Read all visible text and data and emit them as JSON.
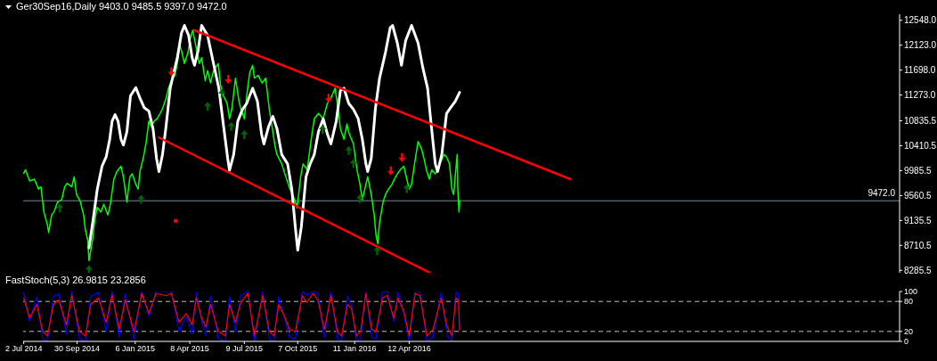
{
  "chart_data": [
    {
      "type": "line",
      "title": "Ger30Sep16,Daily 9403.0 9485.5 9397.0 9472.0",
      "xlim": [
        "2014-07-01",
        "2018-07-18"
      ],
      "ylim": [
        8245,
        12650
      ],
      "yticks": [
        {
          "value": 12548,
          "label": "12548.0"
        },
        {
          "value": 12123,
          "label": "12123.0"
        },
        {
          "value": 11698,
          "label": "11698.0"
        },
        {
          "value": 11273,
          "label": "11273.0"
        },
        {
          "value": 10835.5,
          "label": "10835.5"
        },
        {
          "value": 10410.5,
          "label": "10410.5"
        },
        {
          "value": 9985.5,
          "label": "9985.5"
        },
        {
          "value": 9560.5,
          "label": "9560.5"
        },
        {
          "value": 9135.5,
          "label": "9135.5"
        },
        {
          "value": 8710.5,
          "label": "8710.5"
        },
        {
          "value": 8285.5,
          "label": "8285.5"
        }
      ],
      "tick_labels": "y",
      "ref_lines": [
        {
          "axis": "y",
          "value": 9472,
          "label": "9472.0",
          "color": "#778899"
        }
      ],
      "series": [
        {
          "color": "#00ff00",
          "x": [
            "2014-07-02",
            "2014-07-05",
            "2014-07-12",
            "2014-07-20",
            "2014-07-27",
            "2014-07-31",
            "2014-08-05",
            "2014-08-11",
            "2014-08-13",
            "2014-08-18",
            "2014-08-22",
            "2014-08-28",
            "2014-09-04",
            "2014-09-09",
            "2014-09-13",
            "2014-09-21",
            "2014-09-25",
            "2014-09-29",
            "2014-10-05",
            "2014-10-11",
            "2014-10-14",
            "2014-10-18",
            "2014-10-20",
            "2014-10-26",
            "2014-10-30",
            "2014-11-03",
            "2014-11-09",
            "2014-11-14",
            "2014-11-21",
            "2014-11-25",
            "2014-12-01",
            "2014-12-06",
            "2014-12-13",
            "2014-12-17",
            "2014-12-23",
            "2014-12-28",
            "2015-01-01",
            "2015-01-07",
            "2015-01-11",
            "2015-01-14",
            "2015-01-20",
            "2015-01-24",
            "2015-01-29",
            "2015-02-02",
            "2015-02-07",
            "2015-02-12",
            "2015-02-17",
            "2015-02-21",
            "2015-02-27",
            "2015-03-03",
            "2015-03-08",
            "2015-03-14",
            "2015-03-18",
            "2015-03-22",
            "2015-03-25",
            "2015-03-30",
            "2015-04-05",
            "2015-04-09",
            "2015-04-13",
            "2015-04-19",
            "2015-04-24",
            "2015-04-28",
            "2015-05-04",
            "2015-05-08",
            "2015-05-13",
            "2015-05-18",
            "2015-05-26",
            "2015-05-30",
            "2015-06-04",
            "2015-06-10",
            "2015-06-14",
            "2015-06-18",
            "2015-06-24",
            "2015-06-30",
            "2015-07-03",
            "2015-07-09",
            "2015-07-13",
            "2015-07-18",
            "2015-07-23",
            "2015-07-26",
            "2015-08-01",
            "2015-08-08",
            "2015-08-14",
            "2015-08-20",
            "2015-08-24",
            "2015-08-30",
            "2015-09-02",
            "2015-09-10",
            "2015-09-17",
            "2015-09-24",
            "2015-10-02",
            "2015-10-06",
            "2015-10-12",
            "2015-10-16",
            "2015-10-23",
            "2015-10-31",
            "2015-11-04",
            "2015-11-11",
            "2015-11-19",
            "2015-11-26",
            "2015-12-02",
            "2015-12-09",
            "2015-12-14",
            "2015-12-18",
            "2015-12-24",
            "2015-12-29",
            "2016-01-02",
            "2016-01-09",
            "2016-01-15",
            "2016-01-20",
            "2016-01-24",
            "2016-01-30",
            "2016-02-02",
            "2016-02-08",
            "2016-02-13",
            "2016-02-16",
            "2016-02-19",
            "2016-02-22",
            "2016-02-28",
            "2016-03-03",
            "2016-03-08",
            "2016-03-14",
            "2016-03-18",
            "2016-03-23",
            "2016-03-28",
            "2016-04-03",
            "2016-04-08",
            "2016-04-12",
            "2016-04-16",
            "2016-04-21",
            "2016-04-27",
            "2016-05-03",
            "2016-05-07",
            "2016-05-11",
            "2016-05-16",
            "2016-05-20",
            "2016-05-26",
            "2016-05-30",
            "2016-06-04",
            "2016-06-10",
            "2016-06-14",
            "2016-06-19",
            "2016-06-23",
            "2016-06-26",
            "2016-06-29",
            "2016-07-02",
            "2016-07-03",
            "2016-07-05",
            "2016-07-06"
          ],
          "values": [
            9940,
            10000,
            9810,
            9840,
            9670,
            9710,
            9280,
            9060,
            8930,
            9230,
            9280,
            9450,
            9490,
            9710,
            9770,
            9710,
            9880,
            9580,
            9470,
            9230,
            8970,
            8800,
            8450,
            8800,
            9150,
            9360,
            9280,
            9410,
            9230,
            9410,
            9840,
            9970,
            10060,
            9880,
            9450,
            9880,
            9930,
            9750,
            9670,
            9970,
            10220,
            10440,
            10830,
            10740,
            10830,
            10870,
            10960,
            11040,
            11220,
            11390,
            11520,
            11610,
            11810,
            12120,
            12030,
            11810,
            12000,
            12250,
            12380,
            12070,
            11810,
            11910,
            11520,
            11690,
            11480,
            11690,
            11810,
            11430,
            11260,
            11130,
            10870,
            11040,
            11560,
            11170,
            11040,
            10870,
            11260,
            11650,
            11780,
            11560,
            11610,
            11480,
            11560,
            11040,
            10780,
            10390,
            10260,
            10100,
            9880,
            9670,
            9490,
            9350,
            9880,
            10100,
            10000,
            10610,
            10870,
            10960,
            10870,
            11130,
            11220,
            11390,
            11040,
            10700,
            10520,
            10780,
            10610,
            10440,
            10000,
            9750,
            9490,
            9750,
            9880,
            9580,
            9230,
            8890,
            8740,
            9100,
            9450,
            9580,
            9670,
            9750,
            9840,
            9930,
            10000,
            10060,
            9840,
            9670,
            9750,
            10100,
            10480,
            10350,
            10190,
            10000,
            9840,
            10000,
            9930,
            10000,
            10130,
            10260,
            10220,
            10100,
            9670,
            9580,
            9930,
            10260,
            9670,
            9280,
            9470
          ]
        },
        {
          "color": "#ffffff",
          "x": [
            "2014-10-20",
            "2014-10-27",
            "2014-11-03",
            "2014-11-11",
            "2014-11-18",
            "2014-11-24",
            "2014-11-28",
            "2014-12-03",
            "2014-12-08",
            "2014-12-13",
            "2014-12-17",
            "2014-12-23",
            "2014-12-29",
            "2015-01-07",
            "2015-01-14",
            "2015-01-21",
            "2015-01-29",
            "2015-02-05",
            "2015-02-11",
            "2015-02-15",
            "2015-02-21",
            "2015-02-27",
            "2015-03-06",
            "2015-03-11",
            "2015-03-18",
            "2015-03-25",
            "2015-03-30",
            "2015-04-06",
            "2015-04-12",
            "2015-04-16",
            "2015-04-22",
            "2015-04-28",
            "2015-05-08",
            "2015-05-18",
            "2015-05-27",
            "2015-06-04",
            "2015-06-11",
            "2015-06-14",
            "2015-06-21",
            "2015-06-28",
            "2015-07-06",
            "2015-07-13",
            "2015-07-23",
            "2015-07-31",
            "2015-08-07",
            "2015-08-11",
            "2015-08-19",
            "2015-08-26",
            "2015-09-02",
            "2015-09-10",
            "2015-09-20",
            "2015-09-27",
            "2015-10-03",
            "2015-10-07",
            "2015-10-13",
            "2015-10-21",
            "2015-10-28",
            "2015-11-04",
            "2015-11-11",
            "2015-11-19",
            "2015-11-26",
            "2015-12-02",
            "2015-12-11",
            "2015-12-18",
            "2015-12-24",
            "2016-01-01",
            "2016-01-09",
            "2016-01-17",
            "2016-01-24",
            "2016-01-30",
            "2016-02-02",
            "2016-02-08",
            "2016-02-15",
            "2016-02-22",
            "2016-03-03",
            "2016-03-11",
            "2016-03-15",
            "2016-03-23",
            "2016-03-30",
            "2016-04-06",
            "2016-04-16",
            "2016-04-27",
            "2016-05-05",
            "2016-05-13",
            "2016-05-19",
            "2016-05-26",
            "2016-05-30",
            "2016-06-06",
            "2016-06-14",
            "2016-06-21",
            "2016-06-29",
            "2016-07-06"
          ],
          "values": [
            8670,
            9150,
            9670,
            10060,
            10220,
            10520,
            10830,
            10940,
            10830,
            10520,
            10420,
            10650,
            11260,
            11400,
            11220,
            11060,
            11000,
            10700,
            10190,
            9970,
            10260,
            10740,
            11390,
            11610,
            11910,
            12330,
            12460,
            12290,
            11910,
            11780,
            12030,
            12460,
            12290,
            11810,
            11390,
            10740,
            10190,
            9990,
            10260,
            10830,
            11030,
            11130,
            11390,
            11170,
            10610,
            10440,
            10740,
            10910,
            10700,
            10260,
            10100,
            9670,
            9020,
            8630,
            9020,
            9880,
            10100,
            10260,
            10650,
            10870,
            10610,
            10440,
            10830,
            11350,
            11390,
            11130,
            11030,
            10870,
            10520,
            10100,
            9970,
            10190,
            11040,
            11560,
            12000,
            12420,
            12460,
            12160,
            11780,
            12200,
            12460,
            12160,
            11740,
            11390,
            10780,
            10100,
            9970,
            10260,
            10960,
            11060,
            11170,
            11320
          ]
        },
        {
          "color": "#ff0000",
          "x": [
            "2015-04-15",
            "2017-01-09"
          ],
          "values": [
            12380,
            9840
          ]
        },
        {
          "color": "#ff0000",
          "x": [
            "2015-02-15",
            "2016-05-16"
          ],
          "values": [
            10550,
            8250
          ]
        },
        {
          "type": "scatter",
          "color": "#ff0000",
          "marker": "triangle",
          "x": [
            "2015-03-08",
            "2015-06-12",
            "2015-11-28",
            "2016-03-12",
            "2016-03-31"
          ],
          "values": [
            11670,
            11540,
            11220,
            9980,
            10210
          ]
        },
        {
          "type": "scatter",
          "color": "#006400",
          "marker": "triangle",
          "x": [
            "2014-09-01",
            "2014-10-20",
            "2015-01-16",
            "2015-05-08",
            "2015-06-01",
            "2015-06-17",
            "2015-07-09",
            "2015-11-18",
            "2016-01-01",
            "2016-01-09",
            "2016-01-20",
            "2016-02-18",
            "2016-04-08"
          ],
          "values": [
            9350,
            8300,
            9500,
            11080,
            11300,
            10740,
            10600,
            10690,
            10330,
            10110,
            9510,
            8620,
            9680
          ]
        },
        {
          "type": "scatter",
          "color": "#ff0000",
          "marker": "square",
          "x": [
            "2015-03-15"
          ],
          "values": [
            9130
          ]
        }
      ]
    },
    {
      "type": "line",
      "title": "FastStoch(5,3) 26.9815 23.2856",
      "xlim": [
        "2014-07-01",
        "2018-07-18"
      ],
      "ylim": [
        0,
        100
      ],
      "yticks": [
        0,
        20,
        80,
        100
      ],
      "xticks": [
        {
          "value": "2014-07-02",
          "label": "2 Jul 2014"
        },
        {
          "value": "2014-09-30",
          "label": "30 Sep 2014"
        },
        {
          "value": "2015-01-06",
          "label": "6 Jan 2015"
        },
        {
          "value": "2015-04-08",
          "label": "8 Apr 2015"
        },
        {
          "value": "2015-07-09",
          "label": "9 Jul 2015"
        },
        {
          "value": "2015-10-07",
          "label": "7 Oct 2015"
        },
        {
          "value": "2016-01-11",
          "label": "11 Jan 2016"
        },
        {
          "value": "2016-04-12",
          "label": "12 Apr 2016"
        }
      ],
      "ref_lines": [
        {
          "axis": "y",
          "value": 80,
          "color": "#c0c0c0",
          "line_style": "dashed"
        },
        {
          "axis": "y",
          "value": 20,
          "color": "#c0c0c0",
          "line_style": "dashed"
        }
      ],
      "x": [
        "2014-07-02",
        "2014-07-12",
        "2014-07-24",
        "2014-08-03",
        "2014-08-11",
        "2014-08-21",
        "2014-08-30",
        "2014-09-12",
        "2014-09-21",
        "2014-10-04",
        "2014-10-14",
        "2014-10-23",
        "2014-11-05",
        "2014-11-18",
        "2014-11-28",
        "2014-12-10",
        "2014-12-20",
        "2015-01-04",
        "2015-01-17",
        "2015-01-29",
        "2015-02-10",
        "2015-02-27",
        "2015-03-08",
        "2015-03-21",
        "2015-04-02",
        "2015-04-12",
        "2015-04-19",
        "2015-04-28",
        "2015-05-05",
        "2015-05-13",
        "2015-05-26",
        "2015-06-07",
        "2015-06-14",
        "2015-06-24",
        "2015-07-03",
        "2015-07-15",
        "2015-07-26",
        "2015-08-09",
        "2015-08-20",
        "2015-08-28",
        "2015-09-05",
        "2015-09-16",
        "2015-09-23",
        "2015-10-03",
        "2015-10-15",
        "2015-10-22",
        "2015-11-02",
        "2015-11-10",
        "2015-11-21",
        "2015-12-02",
        "2015-12-13",
        "2015-12-20",
        "2015-12-30",
        "2016-01-06",
        "2016-01-14",
        "2016-01-21",
        "2016-01-30",
        "2016-02-09",
        "2016-02-16",
        "2016-02-27",
        "2016-03-06",
        "2016-03-17",
        "2016-03-24",
        "2016-04-03",
        "2016-04-12",
        "2016-04-22",
        "2016-04-30",
        "2016-05-12",
        "2016-05-22",
        "2016-06-05",
        "2016-06-15",
        "2016-06-23",
        "2016-06-30",
        "2016-07-04",
        "2016-07-06"
      ],
      "series": [
        {
          "color": "#0000ff",
          "values": [
            98,
            40,
            90,
            5,
            0,
            90,
            95,
            15,
            100,
            5,
            0,
            90,
            98,
            20,
            100,
            8,
            95,
            5,
            100,
            50,
            100,
            100,
            100,
            20,
            50,
            15,
            98,
            40,
            12,
            90,
            5,
            0,
            90,
            20,
            92,
            100,
            0,
            100,
            5,
            0,
            90,
            40,
            8,
            5,
            100,
            92,
            100,
            95,
            8,
            100,
            5,
            0,
            90,
            70,
            0,
            5,
            100,
            8,
            5,
            98,
            100,
            40,
            98,
            55,
            0,
            100,
            100,
            0,
            8,
            98,
            12,
            0,
            98,
            95,
            27
          ]
        },
        {
          "color": "#ff0000",
          "values": [
            87,
            47,
            74,
            20,
            11,
            74,
            83,
            33,
            92,
            20,
            11,
            74,
            87,
            38,
            93,
            24,
            83,
            20,
            96,
            56,
            96,
            92,
            96,
            38,
            56,
            33,
            87,
            47,
            29,
            74,
            20,
            11,
            74,
            38,
            78,
            96,
            11,
            92,
            20,
            11,
            74,
            47,
            24,
            20,
            92,
            78,
            96,
            83,
            24,
            92,
            20,
            11,
            74,
            65,
            11,
            20,
            96,
            24,
            20,
            87,
            92,
            47,
            87,
            60,
            11,
            96,
            92,
            11,
            24,
            87,
            29,
            11,
            87,
            83,
            23
          ]
        }
      ]
    }
  ]
}
